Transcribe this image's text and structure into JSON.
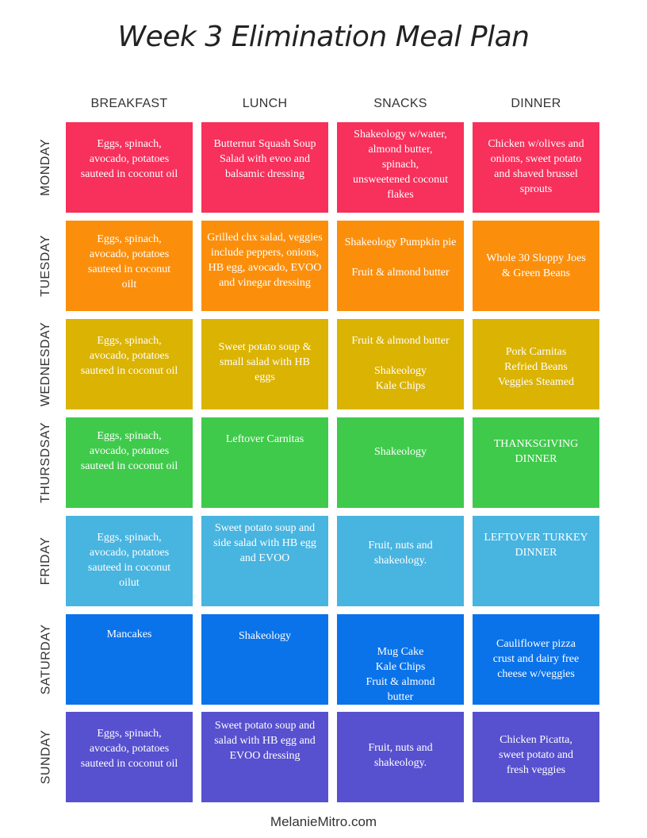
{
  "title": "Week 3 Elimination Meal Plan",
  "columns": [
    "BREAKFAST",
    "LUNCH",
    "SNACKS",
    "DINNER"
  ],
  "days": [
    {
      "name": "MONDAY",
      "color": "#f7305c",
      "cells": [
        {
          "text": "Eggs, spinach,\navocado, potatoes\nsauteed in coconut oil"
        },
        {
          "text": "Butternut Squash Soup\nSalad with evoo and\nbalsamic dressing"
        },
        {
          "text": "Shakeology w/water,\nalmond butter,\nspinach,\nunsweetened coconut\nflakes"
        },
        {
          "text": "Chicken w/olives and\nonions, sweet potato\nand shaved brussel\nsprouts"
        }
      ]
    },
    {
      "name": "TUESDAY",
      "color": "#fb8f0c",
      "cells": [
        {
          "text": "Eggs, spinach,\navocado, potatoes\nsauteed in coconut\noilt"
        },
        {
          "text": "Grilled chx salad, veggies\ninclude peppers, onions,\nHB egg, avocado, EVOO\nand vinegar dressing"
        },
        {
          "text": "Shakeology Pumpkin pie\n\nFruit & almond butter"
        },
        {
          "text": "Whole 30 Sloppy Joes\n& Green Beans"
        }
      ]
    },
    {
      "name": "WEDNESDAY",
      "color": "#dbb303",
      "cells": [
        {
          "text": "Eggs, spinach,\navocado, potatoes\nsauteed in coconut oil"
        },
        {
          "text": "Sweet potato soup &\nsmall salad with HB\neggs"
        },
        {
          "text": "Fruit & almond butter\n\nShakeology\nKale Chips"
        },
        {
          "text": "Pork Carnitas\nRefried Beans\nVeggies Steamed"
        }
      ]
    },
    {
      "name": "THURSDSAY",
      "color": "#3fca4b",
      "cells": [
        {
          "text": "Eggs, spinach,\navocado, potatoes\nsauteed in coconut oil"
        },
        {
          "text": "Leftover Carnitas"
        },
        {
          "text": "Shakeology"
        },
        {
          "text": "THANKSGIVING\nDINNER"
        }
      ]
    },
    {
      "name": "FRIDAY",
      "color": "#48b4e0",
      "cells": [
        {
          "text": "Eggs, spinach,\navocado, potatoes\nsauteed in coconut\noilut"
        },
        {
          "text": "Sweet potato soup and\nside salad with HB egg\nand EVOO"
        },
        {
          "text": "Fruit, nuts and\nshakeology."
        },
        {
          "text": "LEFTOVER TURKEY\nDINNER"
        }
      ]
    },
    {
      "name": "SATURDAY",
      "color": "#0a73ea",
      "cells": [
        {
          "text": "Mancakes"
        },
        {
          "text": "Shakeology"
        },
        {
          "text": "Mug Cake\nKale Chips\nFruit & almond\nbutter"
        },
        {
          "text": "Cauliflower pizza\ncrust and dairy free\ncheese w/veggies"
        }
      ]
    },
    {
      "name": "SUNDAY",
      "color": "#5750cf",
      "cells": [
        {
          "text": "Eggs, spinach,\navocado, potatoes\nsauteed in coconut oil"
        },
        {
          "text": "Sweet potato soup and\nsalad with HB egg and\nEVOO dressing"
        },
        {
          "text": "Fruit, nuts and\nshakeology."
        },
        {
          "text": "Chicken Picatta,\nsweet potato and\nfresh veggies"
        }
      ]
    }
  ],
  "footer": "MelanieMitro.com"
}
